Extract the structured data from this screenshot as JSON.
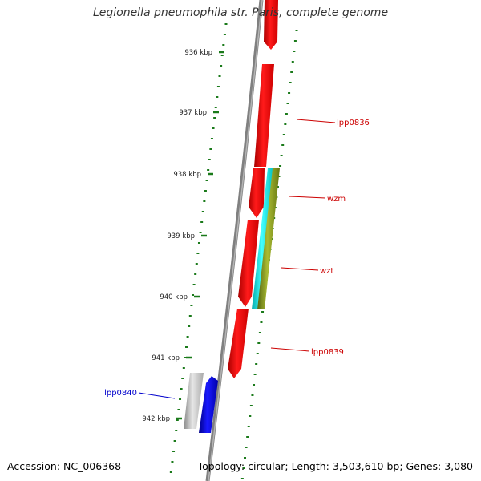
{
  "title": "Legionella pneumophila str. Paris, complete genome",
  "accession": "Accession: NC_006368",
  "summary": "Topology: circular; Length: 3,503,610 bp; Genes: 3,080",
  "colors": {
    "backbone": "#777777",
    "ticks": "#1a7a1a",
    "forward_gene": "#ff0000",
    "highlight_gene": "#0000ff",
    "neutral_gene": "#bbbbbb",
    "cyan_feature": "#00cccc",
    "olive_feature": "#7a8a1a",
    "label_red": "#cc0000",
    "label_blue": "#0000cc"
  },
  "scale_labels": [
    "936 kbp",
    "937 kbp",
    "938 kbp",
    "939 kbp",
    "940 kbp",
    "941 kbp",
    "942 kbp"
  ],
  "gene_labels": [
    {
      "text": "lpp0836",
      "color": "red"
    },
    {
      "text": "wzm",
      "color": "red"
    },
    {
      "text": "wzt",
      "color": "red"
    },
    {
      "text": "lpp0839",
      "color": "red"
    },
    {
      "text": "lpp0840",
      "color": "blue"
    }
  ]
}
